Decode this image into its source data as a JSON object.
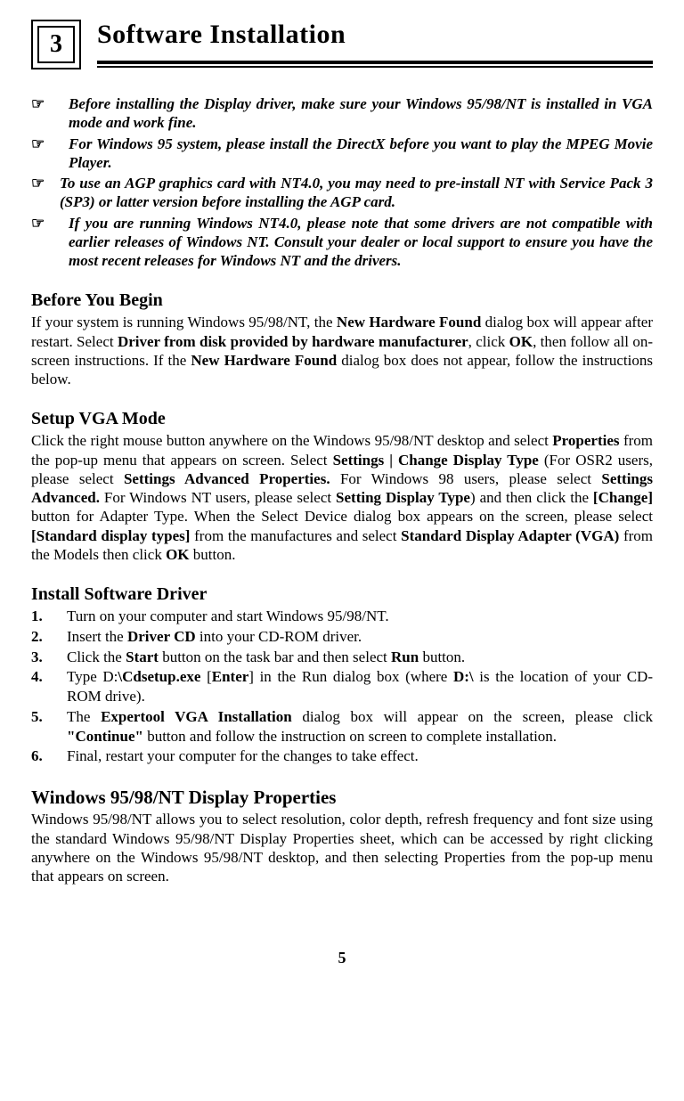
{
  "chapter_number": "3",
  "page_title": "Software Installation",
  "page_number": "5",
  "pointer_glyph": "☞",
  "notes": [
    "Before installing the Display driver, make sure your Windows 95/98/NT is installed in VGA mode and work fine.",
    "For Windows 95 system, please install the DirectX before you want to play the MPEG Movie Player.",
    "To use an AGP graphics card with NT4.0, you may need to pre-install NT with Service Pack 3 (SP3) or latter version before installing the AGP card.",
    "If you are running Windows NT4.0, please note that some drivers are not compatible with earlier releases of Windows NT.  Consult your dealer or local support to ensure you have the most recent releases for Windows NT and the drivers."
  ],
  "sections": {
    "before_begin": {
      "heading": "Before You Begin"
    },
    "setup_vga": {
      "heading": "Setup VGA Mode"
    },
    "install_driver": {
      "heading": "Install Software Driver"
    },
    "display_props": {
      "heading": "Windows 95/98/NT Display Properties",
      "body": "Windows 95/98/NT allows you to select resolution, color depth, refresh frequency and font size using the standard Windows 95/98/NT Display Properties sheet, which can be accessed by right clicking anywhere on the Windows 95/98/NT desktop, and then selecting Properties from the pop-up menu that appears on screen."
    }
  },
  "steps_labels": [
    "1.",
    "2.",
    "3.",
    "4.",
    "5.",
    "6."
  ],
  "bold_terms": {
    "new_hw_found": "New Hardware Found",
    "driver_from_disk": "Driver from disk provided by hardware manufacturer",
    "ok": "OK",
    "properties": "Properties",
    "settings_change": "Settings | Change Display Type",
    "settings_adv_prop": "Settings  Advanced Properties.",
    "settings_adv": "Settings Advanced.",
    "setting_display_type": "Setting  Display Type",
    "change": "[Change]",
    "std_types": "[Standard display types]",
    "std_adapter": "Standard Display Adapter (VGA)",
    "driver_cd": "Driver CD",
    "start": "Start",
    "run": "Run",
    "cdsetup": "\\Cdsetup.exe",
    "enter": "Enter",
    "d_drive": "D:\\",
    "expertool": "Expertool VGA Installation",
    "continue": "\"Continue\""
  }
}
